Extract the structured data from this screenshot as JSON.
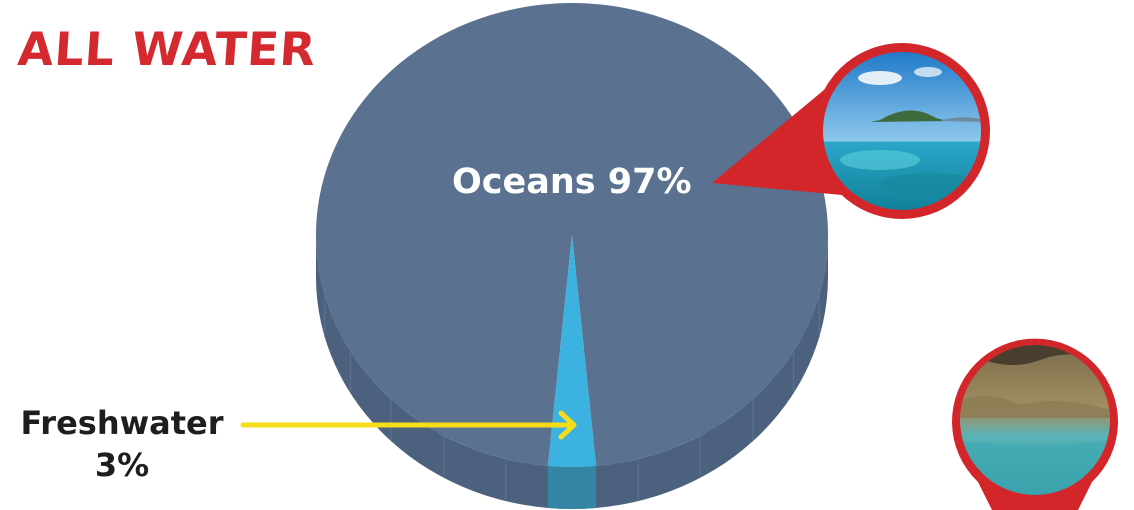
{
  "chart_data": {
    "type": "pie",
    "title": "ALL WATER",
    "slices": [
      {
        "label": "Oceans",
        "value": 97,
        "display": "Oceans 97%",
        "color": "#5a7190"
      },
      {
        "label": "Freshwater",
        "value": 3,
        "display": "Freshwater",
        "display_value": "3%",
        "color": "#3cb2e1"
      }
    ],
    "style": "3d"
  },
  "colors": {
    "title": "#d42a2f",
    "callout": "#d3262b",
    "arrow": "#f7dc19",
    "ocean_top": "#5a7190",
    "ocean_side": "#4c617e",
    "fresh_top": "#3cb2e1",
    "fresh_side": "#3585a5"
  },
  "images": [
    {
      "name": "ocean-island-photo"
    },
    {
      "name": "cave-pool-photo"
    }
  ]
}
